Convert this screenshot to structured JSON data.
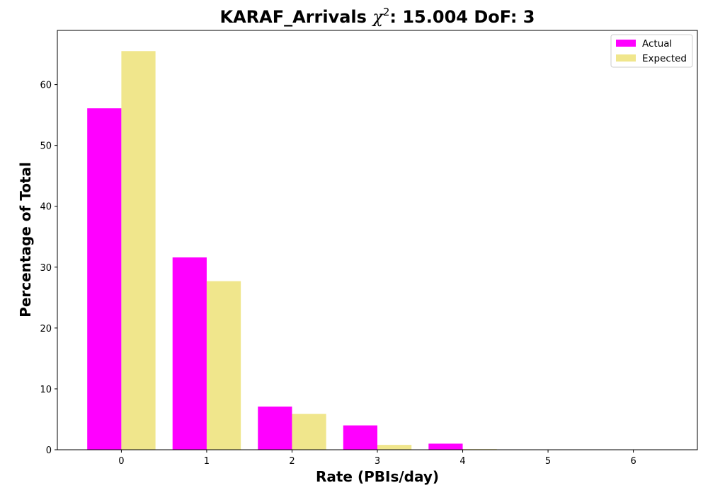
{
  "chart_data": {
    "type": "bar",
    "title_prefix": "KARAF_Arrivals ",
    "title_symbol": "χ",
    "title_superscript": "2",
    "title_suffix": ": 15.004 DoF: 3",
    "xlabel": "Rate (PBIs/day)",
    "ylabel": "Percentage of Total",
    "categories": [
      "0",
      "1",
      "2",
      "3",
      "4",
      "5",
      "6"
    ],
    "x": [
      0,
      1,
      2,
      3,
      4,
      5,
      6
    ],
    "xlim": [
      -0.75,
      6.75
    ],
    "ylim": [
      0,
      68.9
    ],
    "yticks": [
      0,
      10,
      20,
      30,
      40,
      50,
      60
    ],
    "series": [
      {
        "name": "Actual",
        "color": "#ff00ff",
        "values": [
          56.1,
          31.6,
          7.1,
          4.0,
          1.0,
          0.0,
          0.0
        ]
      },
      {
        "name": "Expected",
        "color": "#f0e68c",
        "values": [
          65.5,
          27.7,
          5.9,
          0.8,
          0.1,
          0.0,
          0.0
        ]
      }
    ],
    "grid": false,
    "legend_position": "top-right"
  }
}
